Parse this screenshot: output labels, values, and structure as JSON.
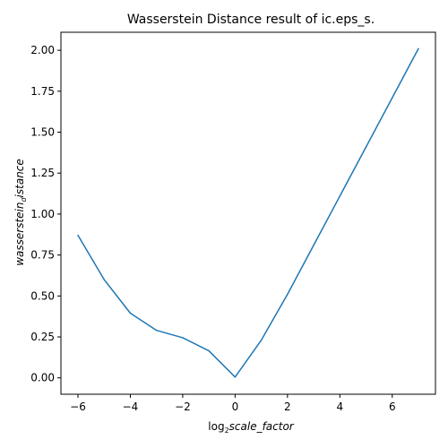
{
  "chart_data": {
    "type": "line",
    "title": "Wasserstein Distance result of ic.eps_s.",
    "xlabel": {
      "prefix": "log",
      "subscript": "2",
      "main": "scale_factor"
    },
    "ylabel": {
      "main": "wasserstein",
      "subscript": "d",
      "suffix": "istance"
    },
    "x": [
      -6,
      -5,
      -4,
      -3,
      -2,
      -1,
      0,
      1,
      2,
      3,
      4,
      5,
      6,
      7
    ],
    "series": [
      {
        "values": [
          0.87,
          0.6,
          0.395,
          0.29,
          0.245,
          0.165,
          0.005,
          0.23,
          0.51,
          0.81,
          1.11,
          1.41,
          1.71,
          2.01
        ],
        "color": "#1f77b4"
      }
    ],
    "xlim": [
      -6.65,
      7.65
    ],
    "ylim": [
      -0.1,
      2.11
    ],
    "xticks": [
      -6,
      -4,
      -2,
      0,
      2,
      4,
      6
    ],
    "xtick_labels": [
      "−6",
      "−4",
      "−2",
      "0",
      "2",
      "4",
      "6"
    ],
    "yticks": [
      0,
      0.25,
      0.5,
      0.75,
      1.0,
      1.25,
      1.5,
      1.75,
      2.0
    ],
    "ytick_labels": [
      "0.00",
      "0.25",
      "0.50",
      "0.75",
      "1.00",
      "1.25",
      "1.50",
      "1.75",
      "2.00"
    ],
    "grid": false,
    "legend": "none"
  }
}
